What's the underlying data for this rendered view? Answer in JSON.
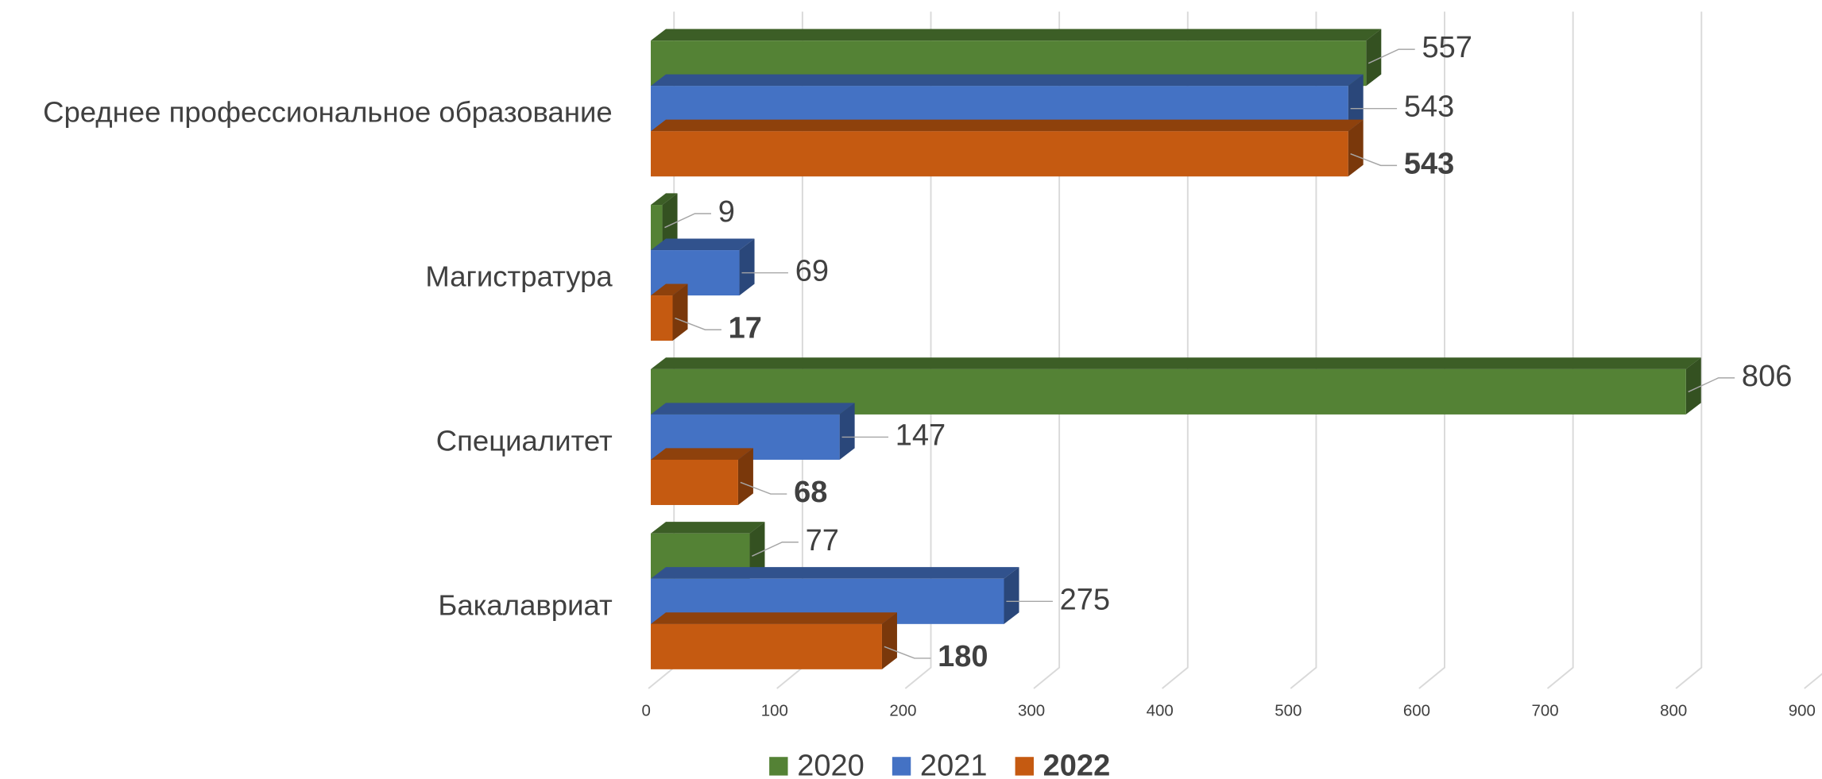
{
  "chart_data": {
    "type": "bar3d",
    "categories": [
      "Среднее профессиональное образование",
      "Магистратура",
      "Специалитет",
      "Бакалавриат"
    ],
    "series": [
      {
        "name": "2020",
        "color": "#548235",
        "values": [
          557,
          9,
          806,
          77
        ]
      },
      {
        "name": "2021",
        "color": "#4472c4",
        "values": [
          543,
          69,
          147,
          275
        ]
      },
      {
        "name": "2022",
        "color": "#c55a11",
        "values": [
          543,
          17,
          68,
          180
        ],
        "bold": true
      }
    ],
    "xlim": [
      0,
      900
    ],
    "xticks": [
      0,
      100,
      200,
      300,
      400,
      500,
      600,
      700,
      800,
      900
    ],
    "grid": true,
    "legend": "bottom"
  }
}
